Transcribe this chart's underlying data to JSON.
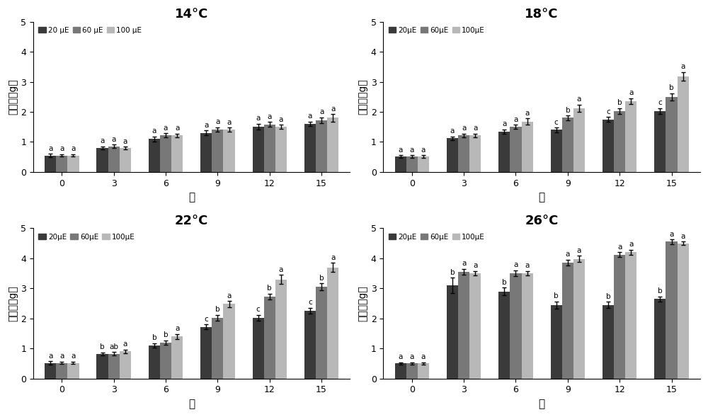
{
  "panels": [
    {
      "title": "14°C",
      "days": [
        0,
        3,
        6,
        9,
        12,
        15
      ],
      "values": {
        "20uE": [
          0.55,
          0.8,
          1.1,
          1.3,
          1.5,
          1.6
        ],
        "60uE": [
          0.55,
          0.85,
          1.22,
          1.42,
          1.58,
          1.72
        ],
        "100uE": [
          0.55,
          0.8,
          1.22,
          1.4,
          1.5,
          1.8
        ]
      },
      "errors": {
        "20uE": [
          0.05,
          0.05,
          0.08,
          0.08,
          0.1,
          0.08
        ],
        "60uE": [
          0.04,
          0.06,
          0.07,
          0.07,
          0.08,
          0.1
        ],
        "100uE": [
          0.04,
          0.04,
          0.06,
          0.07,
          0.07,
          0.12
        ]
      },
      "labels": {
        "20uE": [
          "a",
          "a",
          "a",
          "a",
          "a",
          "a"
        ],
        "60uE": [
          "a",
          "a",
          "a",
          "a",
          "a",
          "a"
        ],
        "100uE": [
          "a",
          "a",
          "a",
          "a",
          "a",
          "a"
        ]
      },
      "legend_labels": [
        "20 μE",
        "60 μE",
        "100 μE"
      ]
    },
    {
      "title": "18°C",
      "days": [
        0,
        3,
        6,
        9,
        12,
        15
      ],
      "values": {
        "20uE": [
          0.52,
          1.12,
          1.35,
          1.4,
          1.75,
          2.02
        ],
        "60uE": [
          0.52,
          1.22,
          1.5,
          1.8,
          2.02,
          2.5
        ],
        "100uE": [
          0.52,
          1.22,
          1.68,
          2.12,
          2.35,
          3.18
        ]
      },
      "errors": {
        "20uE": [
          0.04,
          0.06,
          0.07,
          0.08,
          0.08,
          0.1
        ],
        "60uE": [
          0.04,
          0.06,
          0.07,
          0.08,
          0.1,
          0.12
        ],
        "100uE": [
          0.04,
          0.06,
          0.1,
          0.12,
          0.1,
          0.15
        ]
      },
      "labels": {
        "20uE": [
          "a",
          "a",
          "a",
          "c",
          "c",
          "c"
        ],
        "60uE": [
          "a",
          "a",
          "a",
          "b",
          "b",
          "b"
        ],
        "100uE": [
          "a",
          "a",
          "a",
          "a",
          "a",
          "a"
        ]
      },
      "legend_labels": [
        "20μE",
        "60μE",
        "100μE"
      ]
    },
    {
      "title": "22°C",
      "days": [
        0,
        3,
        6,
        9,
        12,
        15
      ],
      "values": {
        "20uE": [
          0.52,
          0.82,
          1.1,
          1.72,
          2.02,
          2.25
        ],
        "60uE": [
          0.52,
          0.82,
          1.2,
          2.02,
          2.72,
          3.05
        ],
        "100uE": [
          0.52,
          0.9,
          1.4,
          2.48,
          3.3,
          3.7
        ]
      },
      "errors": {
        "20uE": [
          0.05,
          0.05,
          0.07,
          0.08,
          0.1,
          0.1
        ],
        "60uE": [
          0.04,
          0.06,
          0.07,
          0.1,
          0.1,
          0.12
        ],
        "100uE": [
          0.04,
          0.06,
          0.08,
          0.1,
          0.15,
          0.15
        ]
      },
      "labels": {
        "20uE": [
          "a",
          "b",
          "b",
          "c",
          "c",
          "c"
        ],
        "60uE": [
          "a",
          "ab",
          "b",
          "b",
          "b",
          "b"
        ],
        "100uE": [
          "a",
          "a",
          "a",
          "a",
          "a",
          "a"
        ]
      },
      "legend_labels": [
        "20μE",
        "60μE",
        "100μE"
      ]
    },
    {
      "title": "26°C",
      "days": [
        0,
        3,
        6,
        9,
        12,
        15
      ],
      "values": {
        "20uE": [
          0.5,
          3.1,
          2.9,
          2.45,
          2.45,
          2.65
        ],
        "60uE": [
          0.5,
          3.55,
          3.5,
          3.85,
          4.12,
          4.55
        ],
        "100uE": [
          0.5,
          3.5,
          3.5,
          3.98,
          4.2,
          4.5
        ]
      },
      "errors": {
        "20uE": [
          0.04,
          0.25,
          0.12,
          0.12,
          0.1,
          0.08
        ],
        "60uE": [
          0.04,
          0.1,
          0.1,
          0.1,
          0.08,
          0.08
        ],
        "100uE": [
          0.04,
          0.08,
          0.08,
          0.1,
          0.08,
          0.06
        ]
      },
      "labels": {
        "20uE": [
          "a",
          "b",
          "b",
          "b",
          "b",
          "b"
        ],
        "60uE": [
          "a",
          "a",
          "a",
          "a",
          "a",
          "a"
        ],
        "100uE": [
          "a",
          "a",
          "a",
          "a",
          "a",
          "a"
        ]
      },
      "legend_labels": [
        "20μE",
        "60μE",
        "100μE"
      ]
    }
  ],
  "colors": {
    "20uE": "#3a3a3a",
    "60uE": "#787878",
    "100uE": "#b8b8b8"
  },
  "bar_width": 0.22,
  "ylim": [
    0,
    5
  ],
  "yticks": [
    0,
    1,
    2,
    3,
    4,
    5
  ],
  "ylabel_chinese": "生长量",
  "ylabel_unit": "（g）",
  "xlabel": "日",
  "background_color": "#ffffff"
}
